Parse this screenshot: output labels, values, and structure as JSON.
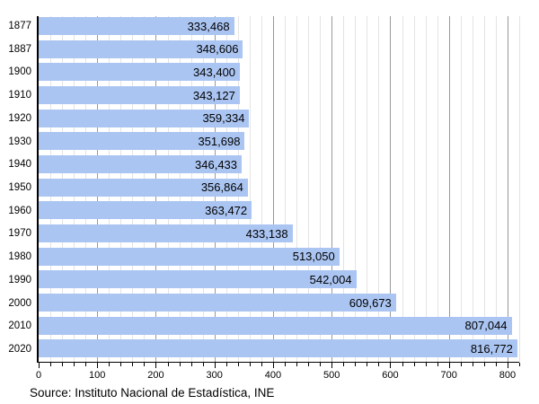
{
  "chart_data": {
    "type": "bar",
    "orientation": "horizontal",
    "title": "",
    "xlabel": "",
    "ylabel": "",
    "categories": [
      "1877",
      "1887",
      "1900",
      "1910",
      "1920",
      "1930",
      "1940",
      "1950",
      "1960",
      "1970",
      "1980",
      "1990",
      "2000",
      "2010",
      "2020"
    ],
    "values": [
      333468,
      348606,
      343400,
      343127,
      359334,
      351698,
      346433,
      356864,
      363472,
      433138,
      513050,
      542004,
      609673,
      807044,
      816772
    ],
    "value_labels": [
      "333,468",
      "348,606",
      "343,400",
      "343,127",
      "359,334",
      "351,698",
      "346,433",
      "356,864",
      "363,472",
      "433,138",
      "513,050",
      "542,004",
      "609,673",
      "807,044",
      "816,772"
    ],
    "x_tick_values": [
      0,
      100,
      200,
      300,
      400,
      500,
      600,
      700,
      800
    ],
    "x_tick_labels": [
      "0",
      "100",
      "200",
      "300",
      "400",
      "500",
      "600",
      "700",
      "800"
    ],
    "x_minor_step": 20,
    "xlim": [
      0,
      820
    ],
    "x_unit_scale": 1000,
    "grid": "vertical",
    "legend": "none",
    "source": "Source: Instituto Nacional de Estadística, INE"
  },
  "colors": {
    "bar_fill": "#abc5f2",
    "major_grid": "#999999",
    "minor_grid": "#e3e3e3",
    "axis": "#000000",
    "text": "#000000",
    "background": "#ffffff"
  }
}
